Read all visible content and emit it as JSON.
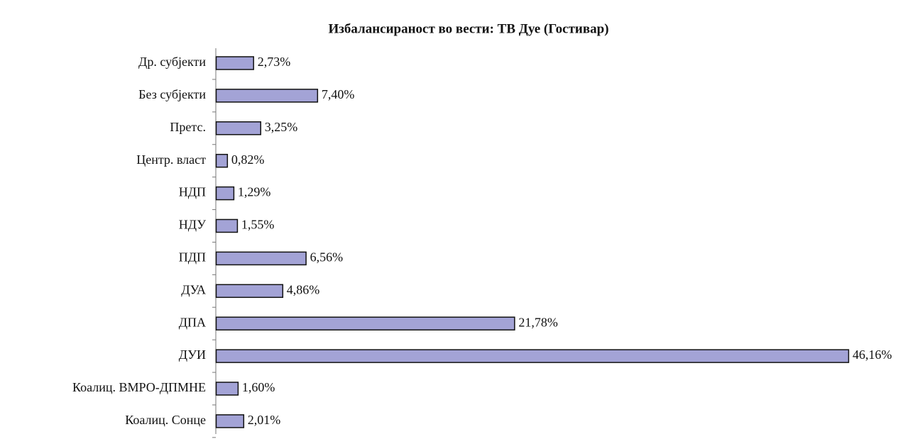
{
  "chart_data": {
    "type": "bar",
    "orientation": "horizontal",
    "title": "Избалансираност во вести: ТВ Дуе (Гостивар)",
    "categories": [
      "Др. субјекти",
      "Без субјекти",
      "Претс.",
      "Центр. власт",
      "НДП",
      "НДУ",
      "ПДП",
      "ДУА",
      "ДПА",
      "ДУИ",
      "Коалиц. ВМРО-ДПМНЕ",
      "Коалиц. Сонце"
    ],
    "values": [
      2.73,
      7.4,
      3.25,
      0.82,
      1.29,
      1.55,
      6.56,
      4.86,
      21.78,
      46.16,
      1.6,
      2.01
    ],
    "value_labels": [
      "2,73%",
      "7,40%",
      "3,25%",
      "0,82%",
      "1,29%",
      "1,55%",
      "6,56%",
      "4,86%",
      "21,78%",
      "46,16%",
      "1,60%",
      "2,01%"
    ],
    "color": "#a3a3d6"
  }
}
